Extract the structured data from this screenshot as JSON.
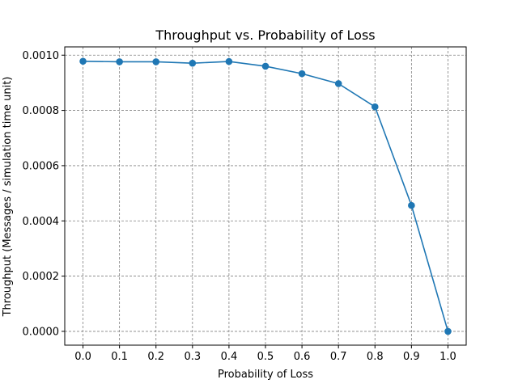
{
  "chart_data": {
    "type": "line",
    "title": "Throughput vs. Probability of Loss",
    "xlabel": "Probability of Loss",
    "ylabel": "Throughput (Messages / simulation time unit)",
    "x": [
      0.0,
      0.1,
      0.2,
      0.3,
      0.4,
      0.5,
      0.6,
      0.7,
      0.8,
      0.9,
      1.0
    ],
    "series": [
      {
        "values": [
          0.000978,
          0.000976,
          0.000976,
          0.000971,
          0.000977,
          0.00096,
          0.000933,
          0.000897,
          0.000813,
          0.000456,
          0.0
        ]
      }
    ],
    "xlim": [
      -0.05,
      1.05
    ],
    "ylim": [
      -5e-05,
      0.00103
    ],
    "xticks": [
      0.0,
      0.1,
      0.2,
      0.3,
      0.4,
      0.5,
      0.6,
      0.7,
      0.8,
      0.9,
      1.0
    ],
    "xtick_labels": [
      "0.0",
      "0.1",
      "0.2",
      "0.3",
      "0.4",
      "0.5",
      "0.6",
      "0.7",
      "0.8",
      "0.9",
      "1.0"
    ],
    "yticks": [
      0.0,
      0.0002,
      0.0004,
      0.0006,
      0.0008,
      0.001
    ],
    "ytick_labels": [
      "0.0000",
      "0.0002",
      "0.0004",
      "0.0006",
      "0.0008",
      "0.0010"
    ],
    "grid": true,
    "line_color": "#1f77b4",
    "grid_color": "#808080"
  }
}
